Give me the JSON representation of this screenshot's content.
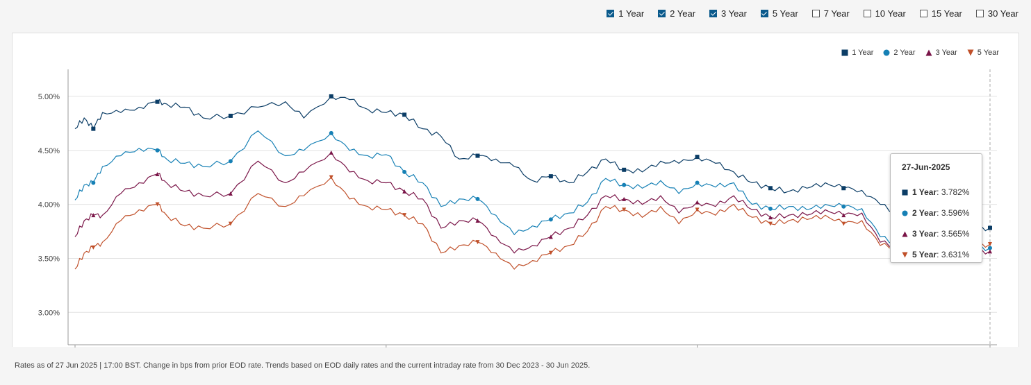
{
  "filters": [
    {
      "label": "1 Year",
      "checked": true
    },
    {
      "label": "2 Year",
      "checked": true
    },
    {
      "label": "3 Year",
      "checked": true
    },
    {
      "label": "5 Year",
      "checked": true
    },
    {
      "label": "7 Year",
      "checked": false
    },
    {
      "label": "10 Year",
      "checked": false
    },
    {
      "label": "15 Year",
      "checked": false
    },
    {
      "label": "30 Year",
      "checked": false
    }
  ],
  "tooltip": {
    "date": "27-Jun-2025",
    "rows": [
      {
        "name": "1 Year",
        "value": "3.782%"
      },
      {
        "name": "2 Year",
        "value": "3.596%"
      },
      {
        "name": "3 Year",
        "value": "3.565%"
      },
      {
        "name": "5 Year",
        "value": "3.631%"
      }
    ]
  },
  "footnote": "Rates as of 27 Jun 2025 | 17:00 BST. Change in bps from prior EOD rate. Trends based on EOD daily rates and the current intraday rate from 30 Dec 2023 - 30 Jun 2025.",
  "chart_data": {
    "type": "line",
    "y_ticks": [
      "3.00%",
      "3.50%",
      "4.00%",
      "4.50%",
      "5.00%"
    ],
    "ylim": [
      2.7,
      5.25
    ],
    "xlim": [
      0,
      1
    ],
    "legend_position": "top-right",
    "grid": true,
    "series": [
      {
        "name": "1 Year",
        "color": "#0b3d66",
        "marker": "square",
        "x": [
          0,
          0.01,
          0.02,
          0.03,
          0.05,
          0.07,
          0.09,
          0.1,
          0.12,
          0.14,
          0.17,
          0.2,
          0.23,
          0.25,
          0.28,
          0.3,
          0.32,
          0.34,
          0.36,
          0.38,
          0.4,
          0.42,
          0.44,
          0.46,
          0.48,
          0.5,
          0.52,
          0.54,
          0.56,
          0.58,
          0.6,
          0.62,
          0.64,
          0.66,
          0.68,
          0.7,
          0.72,
          0.74,
          0.76,
          0.78,
          0.8,
          0.82,
          0.84,
          0.86,
          0.88,
          0.9,
          0.92,
          0.94,
          0.96,
          0.98,
          1.0
        ],
        "y": [
          4.7,
          4.8,
          4.7,
          4.85,
          4.85,
          4.9,
          4.95,
          4.93,
          4.9,
          4.8,
          4.82,
          4.9,
          4.95,
          4.8,
          5.0,
          4.97,
          4.88,
          4.85,
          4.83,
          4.7,
          4.63,
          4.42,
          4.45,
          4.42,
          4.35,
          4.22,
          4.26,
          4.2,
          4.3,
          4.42,
          4.32,
          4.3,
          4.4,
          4.38,
          4.44,
          4.38,
          4.3,
          4.2,
          4.15,
          4.12,
          4.15,
          4.2,
          4.15,
          4.13,
          4.0,
          3.9,
          3.88,
          3.82,
          3.8,
          3.78,
          3.782
        ]
      },
      {
        "name": "2 Year",
        "color": "#1680b5",
        "marker": "circle",
        "x": [
          0,
          0.01,
          0.02,
          0.03,
          0.05,
          0.07,
          0.09,
          0.1,
          0.12,
          0.14,
          0.17,
          0.2,
          0.23,
          0.25,
          0.28,
          0.3,
          0.32,
          0.34,
          0.36,
          0.38,
          0.4,
          0.42,
          0.44,
          0.46,
          0.48,
          0.5,
          0.52,
          0.54,
          0.56,
          0.58,
          0.6,
          0.62,
          0.64,
          0.66,
          0.68,
          0.7,
          0.72,
          0.74,
          0.76,
          0.78,
          0.8,
          0.82,
          0.84,
          0.86,
          0.88,
          0.9,
          0.92,
          0.94,
          0.96,
          0.98,
          1.0
        ],
        "y": [
          4.04,
          4.18,
          4.2,
          4.35,
          4.45,
          4.52,
          4.5,
          4.42,
          4.38,
          4.35,
          4.4,
          4.68,
          4.45,
          4.5,
          4.66,
          4.5,
          4.45,
          4.46,
          4.3,
          4.2,
          3.98,
          4.05,
          4.05,
          3.9,
          3.72,
          3.8,
          3.86,
          3.92,
          4.02,
          4.24,
          4.18,
          4.15,
          4.22,
          4.1,
          4.2,
          4.16,
          4.2,
          4.0,
          3.96,
          3.98,
          3.95,
          4.0,
          3.98,
          3.96,
          3.7,
          3.62,
          3.6,
          3.62,
          3.58,
          3.6,
          3.596
        ]
      },
      {
        "name": "3 Year",
        "color": "#7a1548",
        "marker": "triangle-up",
        "x": [
          0,
          0.01,
          0.02,
          0.03,
          0.05,
          0.07,
          0.09,
          0.1,
          0.12,
          0.14,
          0.17,
          0.2,
          0.23,
          0.25,
          0.28,
          0.3,
          0.32,
          0.34,
          0.36,
          0.38,
          0.4,
          0.42,
          0.44,
          0.46,
          0.48,
          0.5,
          0.52,
          0.54,
          0.56,
          0.58,
          0.6,
          0.62,
          0.64,
          0.66,
          0.68,
          0.7,
          0.72,
          0.74,
          0.76,
          0.78,
          0.8,
          0.82,
          0.84,
          0.86,
          0.88,
          0.9,
          0.92,
          0.94,
          0.96,
          0.98,
          1.0
        ],
        "y": [
          3.7,
          3.85,
          3.9,
          3.9,
          4.1,
          4.2,
          4.28,
          4.2,
          4.12,
          4.08,
          4.1,
          4.4,
          4.2,
          4.3,
          4.48,
          4.3,
          4.22,
          4.2,
          4.12,
          4.05,
          3.78,
          3.85,
          3.85,
          3.7,
          3.55,
          3.62,
          3.7,
          3.78,
          3.9,
          4.08,
          4.05,
          4.0,
          4.08,
          3.92,
          4.02,
          3.98,
          4.08,
          3.95,
          3.88,
          3.9,
          3.9,
          3.95,
          3.9,
          3.92,
          3.65,
          3.6,
          3.58,
          3.6,
          3.58,
          3.57,
          3.565
        ]
      },
      {
        "name": "5 Year",
        "color": "#c0502a",
        "marker": "triangle-down",
        "x": [
          0,
          0.01,
          0.02,
          0.03,
          0.05,
          0.07,
          0.09,
          0.1,
          0.12,
          0.14,
          0.17,
          0.2,
          0.23,
          0.25,
          0.28,
          0.3,
          0.32,
          0.34,
          0.36,
          0.38,
          0.4,
          0.42,
          0.44,
          0.46,
          0.48,
          0.5,
          0.52,
          0.54,
          0.56,
          0.58,
          0.6,
          0.62,
          0.64,
          0.66,
          0.68,
          0.7,
          0.72,
          0.74,
          0.76,
          0.78,
          0.8,
          0.82,
          0.84,
          0.86,
          0.88,
          0.9,
          0.92,
          0.94,
          0.96,
          0.98,
          1.0
        ],
        "y": [
          3.4,
          3.55,
          3.6,
          3.65,
          3.85,
          3.95,
          4.0,
          3.9,
          3.8,
          3.78,
          3.82,
          4.1,
          3.98,
          4.08,
          4.25,
          4.05,
          3.98,
          3.95,
          3.9,
          3.82,
          3.55,
          3.62,
          3.65,
          3.55,
          3.4,
          3.48,
          3.55,
          3.62,
          3.75,
          3.98,
          3.95,
          3.88,
          3.98,
          3.82,
          3.95,
          3.9,
          4.0,
          3.88,
          3.82,
          3.85,
          3.86,
          3.9,
          3.82,
          3.85,
          3.62,
          3.6,
          3.58,
          3.6,
          3.6,
          3.62,
          3.631
        ]
      }
    ]
  }
}
